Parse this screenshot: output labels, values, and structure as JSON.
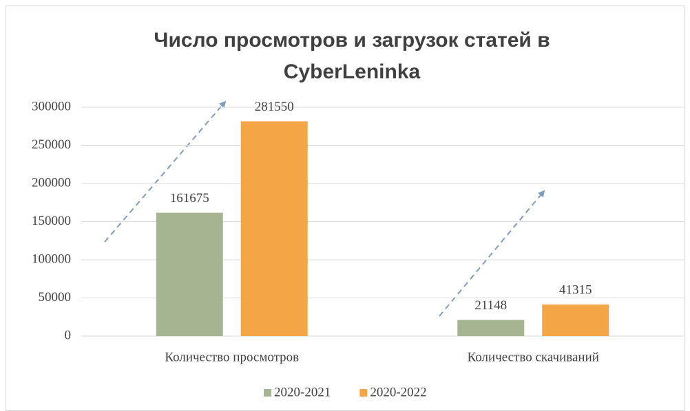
{
  "chart_data": {
    "type": "bar",
    "title": "Число просмотров и загрузок статей в CyberLeninka",
    "categories": [
      "Количество просмотров",
      "Количество скачиваний"
    ],
    "series": [
      {
        "name": "2020-2021",
        "color": "#a5b592",
        "values": [
          161675,
          21148
        ]
      },
      {
        "name": "2020-2022",
        "color": "#f4a646",
        "values": [
          281550,
          41315
        ]
      }
    ],
    "ylim": [
      0,
      300000
    ],
    "yticks": [
      0,
      50000,
      100000,
      150000,
      200000,
      250000,
      300000
    ],
    "grid": true,
    "legend": "bottom"
  }
}
